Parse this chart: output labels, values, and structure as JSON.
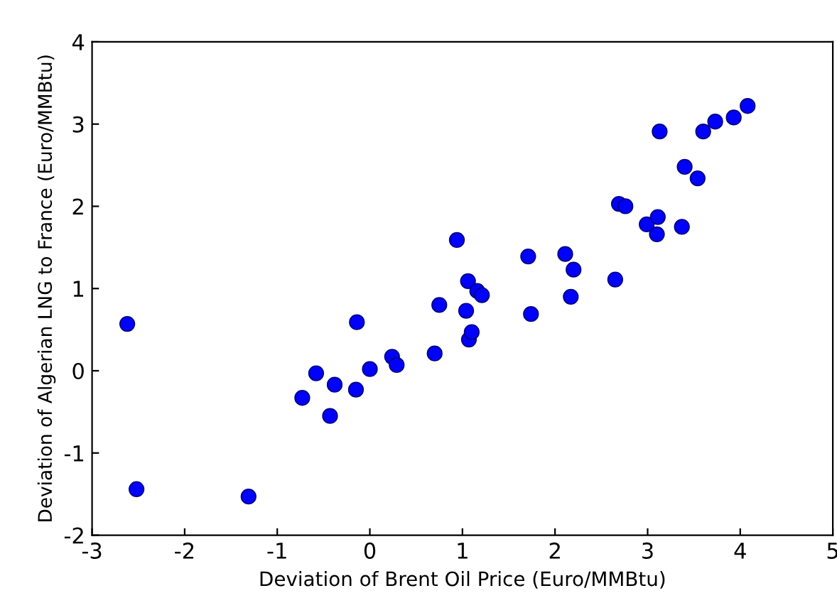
{
  "chart_data": {
    "type": "scatter",
    "xlabel": "Deviation of Brent Oil Price (Euro/MMBtu)",
    "ylabel": "Deviation of Algerian LNG to France (Euro/MMBtu)",
    "x": [
      -2.62,
      -2.52,
      -1.31,
      -0.73,
      -0.58,
      -0.43,
      -0.38,
      -0.15,
      -0.14,
      0.0,
      0.24,
      0.29,
      0.7,
      0.75,
      0.94,
      1.06,
      1.04,
      1.07,
      1.1,
      1.16,
      1.21,
      1.71,
      1.74,
      2.11,
      2.17,
      2.2,
      2.65,
      2.69,
      2.76,
      2.99,
      3.1,
      3.11,
      3.13,
      3.37,
      3.4,
      3.54,
      3.6,
      3.73,
      3.93,
      4.08
    ],
    "series": [
      {
        "color": "#0000ff",
        "values": [
          0.57,
          -1.44,
          -1.53,
          -0.33,
          -0.03,
          -0.55,
          -0.17,
          -0.23,
          0.59,
          0.02,
          0.17,
          0.07,
          0.21,
          0.8,
          1.59,
          1.09,
          0.73,
          0.38,
          0.47,
          0.97,
          0.92,
          1.39,
          0.69,
          1.42,
          0.9,
          1.23,
          1.11,
          2.03,
          2.0,
          1.78,
          1.66,
          1.87,
          2.91,
          1.75,
          2.48,
          2.34,
          2.91,
          3.03,
          3.08,
          3.22
        ]
      }
    ],
    "xlim": [
      -3,
      5
    ],
    "ylim": [
      -2,
      4
    ],
    "xticks": [
      -3,
      -2,
      -1,
      0,
      1,
      2,
      3,
      4,
      5
    ],
    "yticks": [
      -2,
      -1,
      0,
      1,
      2,
      3,
      4
    ],
    "marker": "circle",
    "grid": false
  }
}
